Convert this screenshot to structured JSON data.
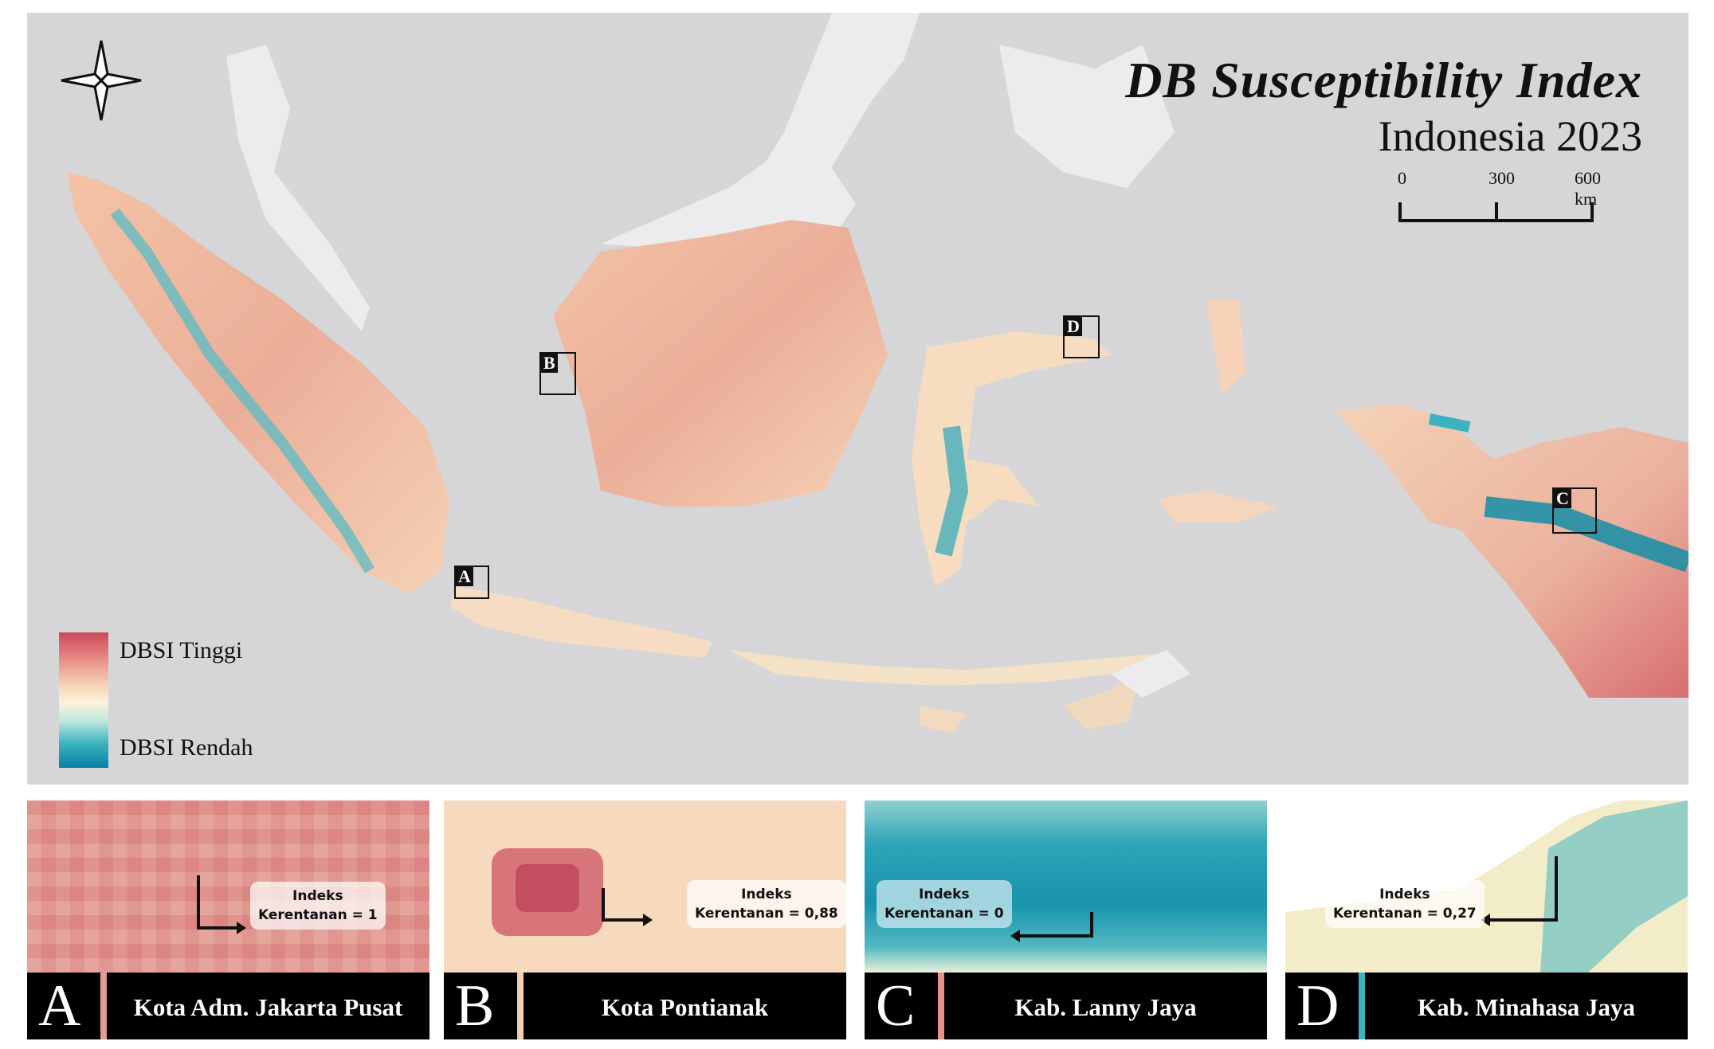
{
  "map": {
    "title": "DB Susceptibility Index",
    "subtitle": "Indonesia 2023",
    "scale": {
      "labels": [
        "0",
        "300",
        "600 km"
      ]
    },
    "legend": {
      "high_label": "DBSI Tinggi",
      "low_label": "DBSI Rendah",
      "colors": {
        "high": "#c9485b",
        "mid": "#fdf3dc",
        "low": "#0a7fa6"
      }
    },
    "compass": "north-arrow-icon",
    "markers": [
      "A",
      "B",
      "C",
      "D"
    ]
  },
  "insets": [
    {
      "letter": "A",
      "place": "Kota Adm. Jakarta Pusat",
      "callout_line1": "Indeks",
      "callout_line2": "Kerentanan = 1",
      "index_value": 1
    },
    {
      "letter": "B",
      "place": "Kota Pontianak",
      "callout_line1": "Indeks",
      "callout_line2": "Kerentanan = 0,88",
      "index_value": 0.88
    },
    {
      "letter": "C",
      "place": "Kab. Lanny Jaya",
      "callout_line1": "Indeks",
      "callout_line2": "Kerentanan = 0",
      "index_value": 0
    },
    {
      "letter": "D",
      "place": "Kab. Minahasa Jaya",
      "callout_line1": "Indeks",
      "callout_line2": "Kerentanan = 0,27",
      "index_value": 0.27
    }
  ]
}
